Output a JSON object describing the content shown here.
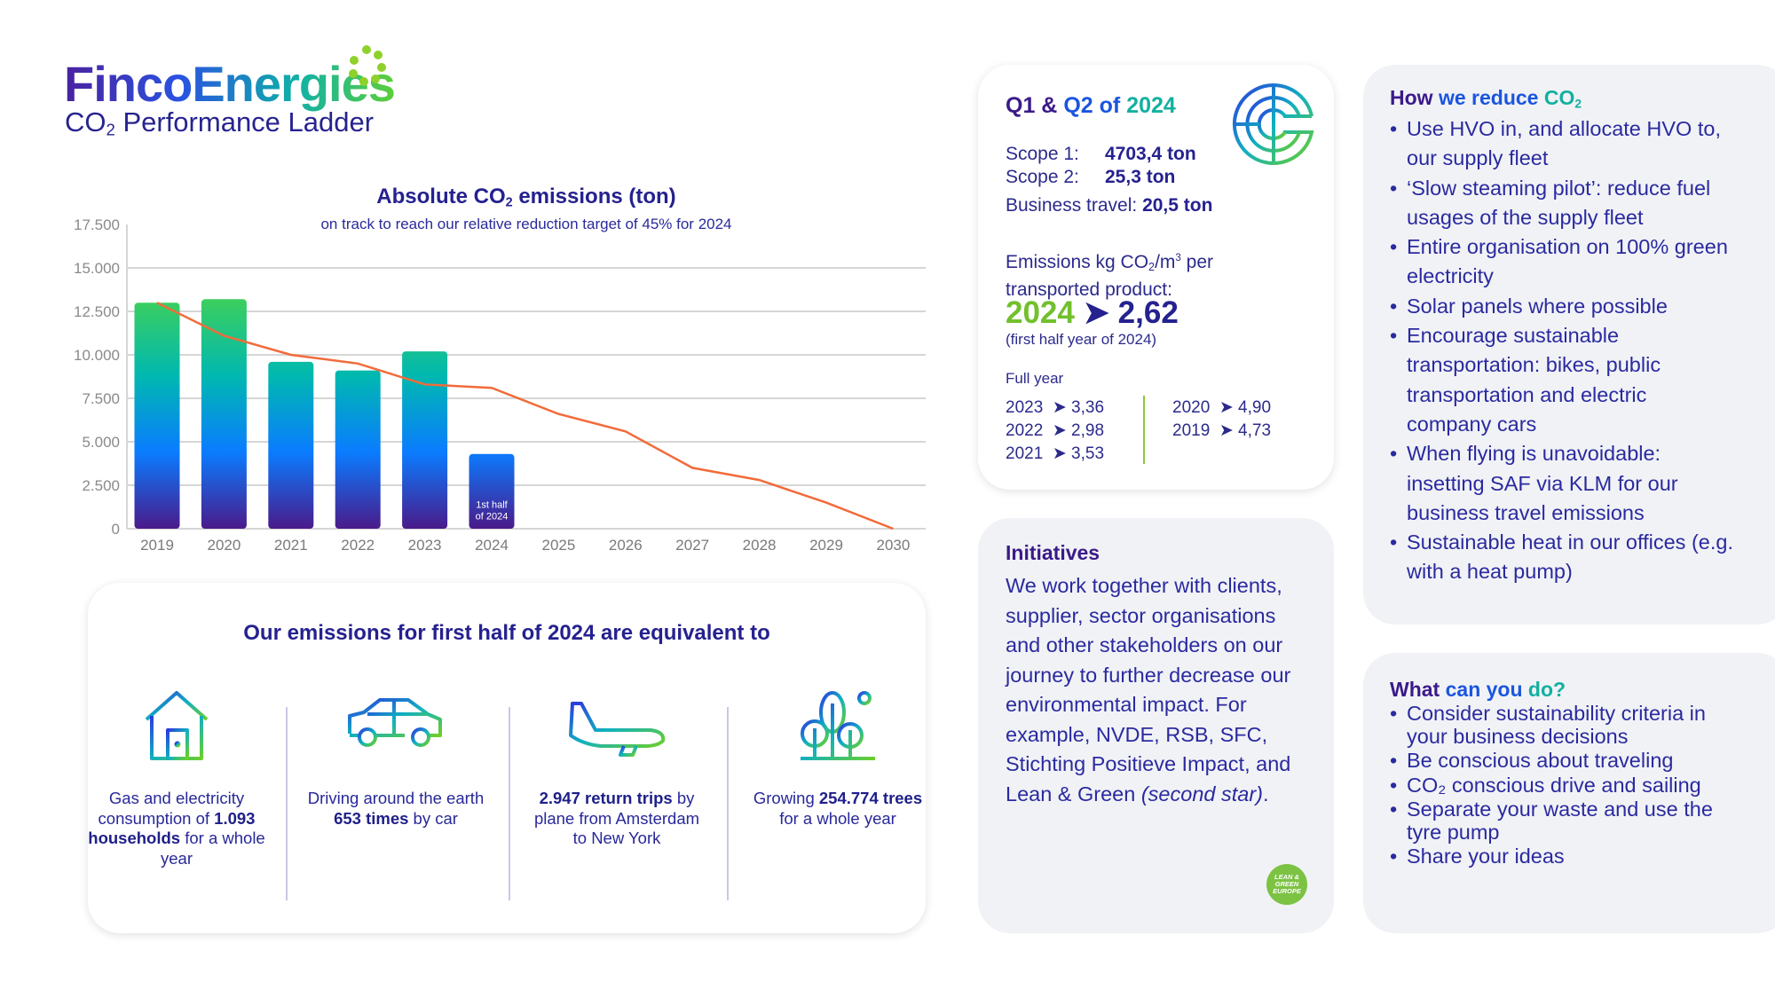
{
  "header": {
    "logo_part1": "Finco",
    "logo_part2": "Energies",
    "subtitle_pre": "CO",
    "subtitle_sub": "2",
    "subtitle_post": " Performance Ladder"
  },
  "chart_data": {
    "type": "bar",
    "title_pre": "Absolute CO",
    "title_sub": "2",
    "title_post": " emissions (ton)",
    "subtitle": "on track to reach our relative reduction target of 45% for 2024",
    "categories": [
      "2019",
      "2020",
      "2021",
      "2022",
      "2023",
      "2024",
      "2025",
      "2026",
      "2027",
      "2028",
      "2029",
      "2030"
    ],
    "series": [
      {
        "type": "bar",
        "values": [
          13000,
          13200,
          9600,
          9100,
          10200,
          4300,
          null,
          null,
          null,
          null,
          null,
          null
        ]
      },
      {
        "type": "line",
        "color": "#f26b3a",
        "values": [
          13000,
          11100,
          10000,
          9500,
          8300,
          8100,
          6600,
          5600,
          3500,
          2800,
          1500,
          0
        ]
      }
    ],
    "bar_annotation_line1": "1st half",
    "bar_annotation_line2": "of 2024",
    "yticks": [
      "0",
      "2.500",
      "5.000",
      "7.500",
      "10.000",
      "12.500",
      "15.000",
      "17.500"
    ],
    "ylim": [
      0,
      17500
    ],
    "grid": true,
    "bar_gradient": [
      "#3ccf5e",
      "#00b8b0",
      "#0a7cff",
      "#4a1a8a"
    ]
  },
  "equivalents": {
    "title": "Our emissions for first half of 2024 are equivalent to",
    "items": [
      {
        "icon": "house-icon",
        "pre": "Gas and electricity consumption of ",
        "bold": "1.093 households",
        "post": " for a whole year"
      },
      {
        "icon": "car-icon",
        "pre": "Driving around the earth ",
        "bold": "653 times",
        "post": " by car"
      },
      {
        "icon": "airplane-icon",
        "pre": "",
        "bold": "2.947 return trips",
        "post": " by plane from Amsterdam to New York"
      },
      {
        "icon": "trees-icon",
        "pre": "Growing ",
        "bold": "254.774 trees",
        "post": " for a whole year"
      }
    ]
  },
  "q_card": {
    "title_a": "Q1",
    "title_b": " & ",
    "title_c": "Q2",
    "title_d": " of ",
    "title_e": "2024",
    "scope1_label": "Scope 1:",
    "scope1_value": "4703,4 ton",
    "scope2_label": "Scope 2:",
    "scope2_value": "25,3 ton",
    "travel_label": "Business travel: ",
    "travel_value": "20,5 ton",
    "emissions_pre": "Emissions kg CO",
    "emissions_sub": "2",
    "emissions_mid": "/m",
    "emissions_sup": "3",
    "emissions_post": " per",
    "emissions_line2": "transported product:",
    "big_year": "2024",
    "big_value": "2,62",
    "big_note": "(first half year of 2024)",
    "full_year_label": "Full year",
    "col1": [
      {
        "year": "2023",
        "value": "3,36"
      },
      {
        "year": "2022",
        "value": "2,98"
      },
      {
        "year": "2021",
        "value": "3,53"
      }
    ],
    "col2": [
      {
        "year": "2020",
        "value": "4,90"
      },
      {
        "year": "2019",
        "value": "4,73"
      }
    ]
  },
  "initiatives": {
    "title": "Initiatives",
    "text": "We work together with clients, supplier, sector organisations and other stakeholders on our journey to further decrease our environmental impact. For example, NVDE, RSB, SFC, Stichting Positieve Impact, and Lean & Green",
    "text_italic": "(second star)",
    "text_end": ".",
    "badge": "LEAN & GREEN EUROPE"
  },
  "reduce": {
    "title_a": "How ",
    "title_b": "we reduce ",
    "title_c": "CO",
    "title_sub": "2",
    "items": [
      "Use HVO in, and allocate HVO to, our supply fleet",
      "‘Slow steaming pilot’: reduce fuel usages of the supply fleet",
      "Entire organisation on 100% green electricity",
      "Solar panels where possible",
      "Encourage sustainable transportation: bikes, public transportation and electric company cars",
      "When flying is unavoidable: insetting SAF via KLM for our business travel emissions",
      "Sustainable heat in our offices (e.g. with a heat pump)"
    ]
  },
  "todo": {
    "title_a": "What ",
    "title_b": "can you ",
    "title_c": "do?",
    "items": [
      "Consider sustainability criteria in your business decisions",
      "Be conscious about traveling",
      "CO₂ conscious drive and sailing",
      "Separate your waste and use the tyre pump",
      "Share your ideas"
    ]
  }
}
